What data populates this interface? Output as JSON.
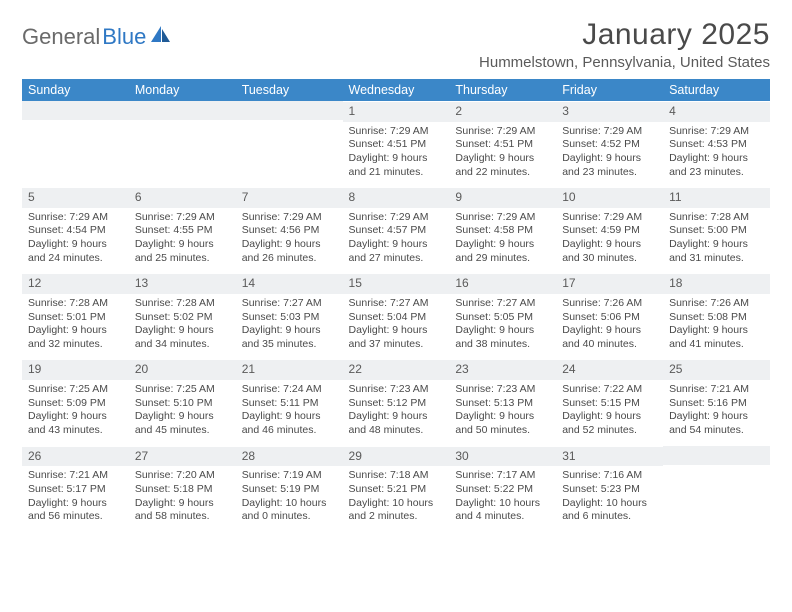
{
  "logo": {
    "text1": "General",
    "text2": "Blue"
  },
  "title": "January 2025",
  "location": "Hummelstown, Pennsylvania, United States",
  "colors": {
    "header_bg": "#3b87c8",
    "header_text": "#ffffff",
    "daynum_bg": "#eef0f2",
    "body_text": "#4a4a4a",
    "logo_gray": "#6a6a6a",
    "logo_blue": "#2f78c4"
  },
  "dayNames": [
    "Sunday",
    "Monday",
    "Tuesday",
    "Wednesday",
    "Thursday",
    "Friday",
    "Saturday"
  ],
  "weeks": [
    [
      null,
      null,
      null,
      {
        "n": "1",
        "sr": "7:29 AM",
        "ss": "4:51 PM",
        "dl": "9 hours and 21 minutes."
      },
      {
        "n": "2",
        "sr": "7:29 AM",
        "ss": "4:51 PM",
        "dl": "9 hours and 22 minutes."
      },
      {
        "n": "3",
        "sr": "7:29 AM",
        "ss": "4:52 PM",
        "dl": "9 hours and 23 minutes."
      },
      {
        "n": "4",
        "sr": "7:29 AM",
        "ss": "4:53 PM",
        "dl": "9 hours and 23 minutes."
      }
    ],
    [
      {
        "n": "5",
        "sr": "7:29 AM",
        "ss": "4:54 PM",
        "dl": "9 hours and 24 minutes."
      },
      {
        "n": "6",
        "sr": "7:29 AM",
        "ss": "4:55 PM",
        "dl": "9 hours and 25 minutes."
      },
      {
        "n": "7",
        "sr": "7:29 AM",
        "ss": "4:56 PM",
        "dl": "9 hours and 26 minutes."
      },
      {
        "n": "8",
        "sr": "7:29 AM",
        "ss": "4:57 PM",
        "dl": "9 hours and 27 minutes."
      },
      {
        "n": "9",
        "sr": "7:29 AM",
        "ss": "4:58 PM",
        "dl": "9 hours and 29 minutes."
      },
      {
        "n": "10",
        "sr": "7:29 AM",
        "ss": "4:59 PM",
        "dl": "9 hours and 30 minutes."
      },
      {
        "n": "11",
        "sr": "7:28 AM",
        "ss": "5:00 PM",
        "dl": "9 hours and 31 minutes."
      }
    ],
    [
      {
        "n": "12",
        "sr": "7:28 AM",
        "ss": "5:01 PM",
        "dl": "9 hours and 32 minutes."
      },
      {
        "n": "13",
        "sr": "7:28 AM",
        "ss": "5:02 PM",
        "dl": "9 hours and 34 minutes."
      },
      {
        "n": "14",
        "sr": "7:27 AM",
        "ss": "5:03 PM",
        "dl": "9 hours and 35 minutes."
      },
      {
        "n": "15",
        "sr": "7:27 AM",
        "ss": "5:04 PM",
        "dl": "9 hours and 37 minutes."
      },
      {
        "n": "16",
        "sr": "7:27 AM",
        "ss": "5:05 PM",
        "dl": "9 hours and 38 minutes."
      },
      {
        "n": "17",
        "sr": "7:26 AM",
        "ss": "5:06 PM",
        "dl": "9 hours and 40 minutes."
      },
      {
        "n": "18",
        "sr": "7:26 AM",
        "ss": "5:08 PM",
        "dl": "9 hours and 41 minutes."
      }
    ],
    [
      {
        "n": "19",
        "sr": "7:25 AM",
        "ss": "5:09 PM",
        "dl": "9 hours and 43 minutes."
      },
      {
        "n": "20",
        "sr": "7:25 AM",
        "ss": "5:10 PM",
        "dl": "9 hours and 45 minutes."
      },
      {
        "n": "21",
        "sr": "7:24 AM",
        "ss": "5:11 PM",
        "dl": "9 hours and 46 minutes."
      },
      {
        "n": "22",
        "sr": "7:23 AM",
        "ss": "5:12 PM",
        "dl": "9 hours and 48 minutes."
      },
      {
        "n": "23",
        "sr": "7:23 AM",
        "ss": "5:13 PM",
        "dl": "9 hours and 50 minutes."
      },
      {
        "n": "24",
        "sr": "7:22 AM",
        "ss": "5:15 PM",
        "dl": "9 hours and 52 minutes."
      },
      {
        "n": "25",
        "sr": "7:21 AM",
        "ss": "5:16 PM",
        "dl": "9 hours and 54 minutes."
      }
    ],
    [
      {
        "n": "26",
        "sr": "7:21 AM",
        "ss": "5:17 PM",
        "dl": "9 hours and 56 minutes."
      },
      {
        "n": "27",
        "sr": "7:20 AM",
        "ss": "5:18 PM",
        "dl": "9 hours and 58 minutes."
      },
      {
        "n": "28",
        "sr": "7:19 AM",
        "ss": "5:19 PM",
        "dl": "10 hours and 0 minutes."
      },
      {
        "n": "29",
        "sr": "7:18 AM",
        "ss": "5:21 PM",
        "dl": "10 hours and 2 minutes."
      },
      {
        "n": "30",
        "sr": "7:17 AM",
        "ss": "5:22 PM",
        "dl": "10 hours and 4 minutes."
      },
      {
        "n": "31",
        "sr": "7:16 AM",
        "ss": "5:23 PM",
        "dl": "10 hours and 6 minutes."
      },
      null
    ]
  ],
  "labels": {
    "sunrise": "Sunrise:",
    "sunset": "Sunset:",
    "daylight": "Daylight:"
  }
}
